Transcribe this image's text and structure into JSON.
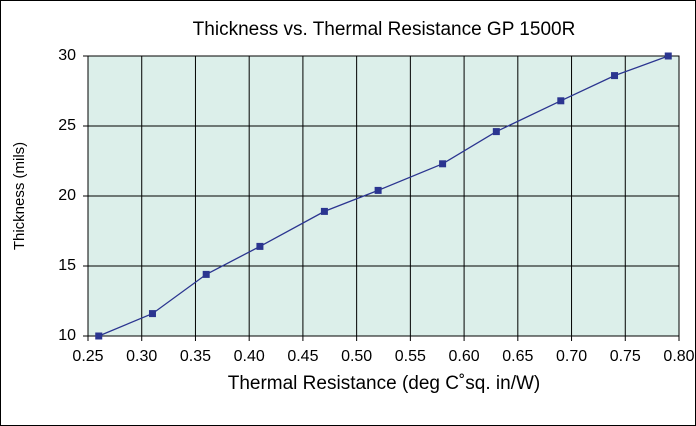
{
  "chart_data": {
    "type": "line",
    "title": "Thickness vs. Thermal Resistance GP 1500R",
    "x_label": "Thermal Resistance (deg C˚sq. in/W)",
    "y_label": "Thickness (mils)",
    "series": [
      {
        "name": "GP 1500R",
        "color": "#2b3590",
        "x": [
          0.26,
          0.31,
          0.36,
          0.41,
          0.47,
          0.52,
          0.58,
          0.63,
          0.69,
          0.74,
          0.79
        ],
        "values": [
          10,
          11.6,
          14.4,
          16.4,
          18.9,
          20.4,
          22.3,
          24.6,
          26.8,
          28.6,
          30
        ]
      }
    ],
    "xlim": [
      0.25,
      0.8
    ],
    "xticks": [
      0.25,
      {
        "value": 0.3,
        "label": "0.30"
      },
      0.35,
      {
        "value": 0.4,
        "label": "0.40"
      },
      0.45,
      {
        "value": 0.5,
        "label": "0.50"
      },
      0.55,
      {
        "value": 0.6,
        "label": "0.60"
      },
      0.65,
      {
        "value": 0.7,
        "label": "0.70"
      },
      0.75,
      {
        "value": 0.8,
        "label": "0.80"
      }
    ],
    "ylim": [
      10,
      30
    ],
    "yticks": [
      10,
      15,
      20,
      25,
      30
    ],
    "grid": true,
    "background": "#dcefea"
  }
}
